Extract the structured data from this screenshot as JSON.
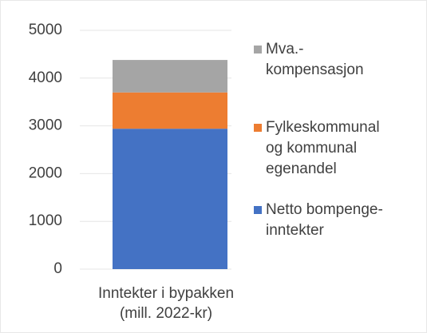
{
  "chart_data": {
    "type": "stacked_bar",
    "categories": [
      "Inntekter i bypakken\n(mill. 2022-kr)"
    ],
    "series": [
      {
        "name": "Netto bompenge-\ninntekter",
        "color": "#4472c4",
        "values": [
          2940
        ]
      },
      {
        "name": "Fylkeskommunal\nog kommunal\negenandel",
        "color": "#ed7d31",
        "values": [
          760
        ]
      },
      {
        "name": "Mva.-\nkompensasjon",
        "color": "#a5a5a5",
        "values": [
          680
        ]
      }
    ],
    "ylim": [
      0,
      5000
    ],
    "yticks": [
      0,
      1000,
      2000,
      3000,
      4000,
      5000
    ],
    "grid": true,
    "legend": "right"
  }
}
